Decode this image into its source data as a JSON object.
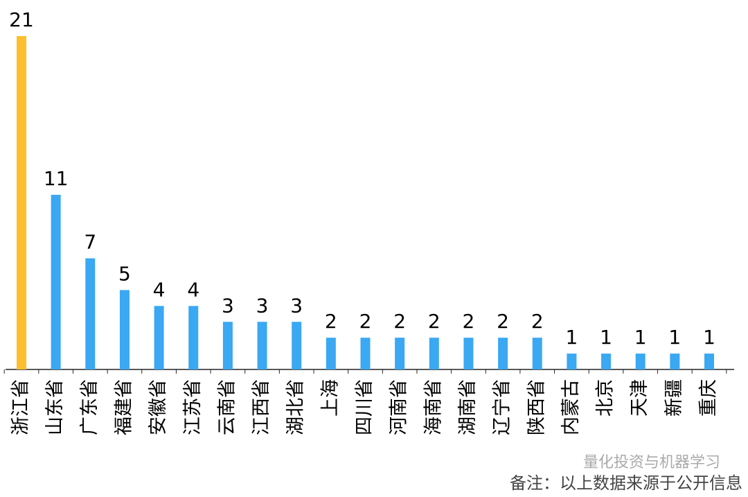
{
  "chart_data": {
    "type": "bar",
    "categories": [
      "浙江省",
      "山东省",
      "广东省",
      "福建省",
      "安徽省",
      "江苏省",
      "云南省",
      "江西省",
      "湖北省",
      "上海",
      "四川省",
      "河南省",
      "海南省",
      "湖南省",
      "辽宁省",
      "陕西省",
      "内蒙古",
      "北京",
      "天津",
      "新疆",
      "重庆"
    ],
    "values": [
      21,
      11,
      7,
      5,
      4,
      4,
      3,
      3,
      3,
      2,
      2,
      2,
      2,
      2,
      2,
      2,
      1,
      1,
      1,
      1,
      1
    ],
    "colors": [
      "#fdbf2d",
      "#3aa8f2",
      "#3aa8f2",
      "#3aa8f2",
      "#3aa8f2",
      "#3aa8f2",
      "#3aa8f2",
      "#3aa8f2",
      "#3aa8f2",
      "#3aa8f2",
      "#3aa8f2",
      "#3aa8f2",
      "#3aa8f2",
      "#3aa8f2",
      "#3aa8f2",
      "#3aa8f2",
      "#3aa8f2",
      "#3aa8f2",
      "#3aa8f2",
      "#3aa8f2",
      "#3aa8f2"
    ],
    "ylim": [
      0,
      21
    ],
    "watermark": "量化投资与机器学习",
    "note": "备注：以上数据来源于公开信息"
  }
}
